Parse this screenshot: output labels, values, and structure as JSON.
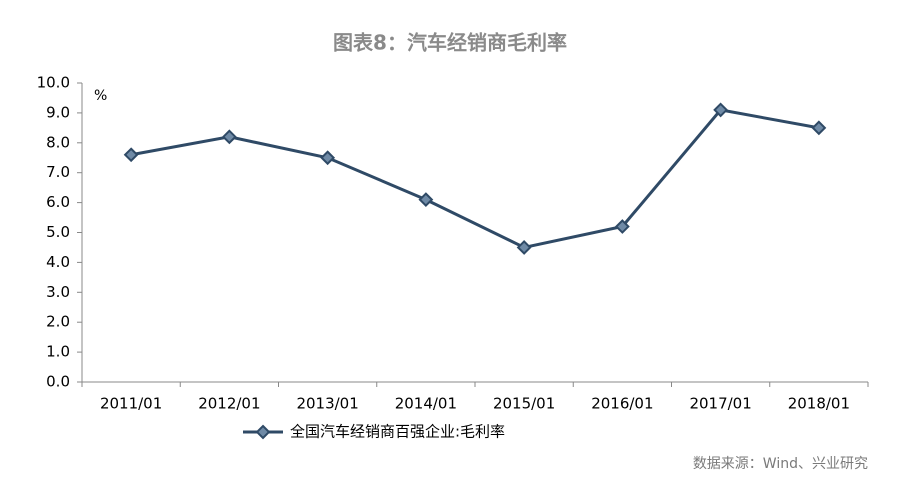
{
  "chart_data": {
    "type": "line",
    "title": "图表8：汽车经销商毛利率",
    "y_unit": "%",
    "categories": [
      "2011/01",
      "2012/01",
      "2013/01",
      "2014/01",
      "2015/01",
      "2016/01",
      "2017/01",
      "2018/01"
    ],
    "series": [
      {
        "name": "全国汽车经销商百强企业:毛利率",
        "color": "#2f4a66",
        "values": [
          7.6,
          8.2,
          7.5,
          6.1,
          4.5,
          5.2,
          9.1,
          8.5
        ]
      }
    ],
    "ylim": [
      0,
      10
    ],
    "yticks": [
      {
        "value": 0,
        "label": "0.0"
      },
      {
        "value": 1,
        "label": "1.0"
      },
      {
        "value": 2,
        "label": "2.0"
      },
      {
        "value": 3,
        "label": "3.0"
      },
      {
        "value": 4,
        "label": "4.0"
      },
      {
        "value": 5,
        "label": "5.0"
      },
      {
        "value": 6,
        "label": "6.0"
      },
      {
        "value": 7,
        "label": "7.0"
      },
      {
        "value": 8,
        "label": "8.0"
      },
      {
        "value": 9,
        "label": "9.0"
      },
      {
        "value": 10,
        "label": "10.0"
      }
    ],
    "grid": false,
    "legend": "bottom",
    "source": "数据来源：Wind、兴业研究"
  }
}
